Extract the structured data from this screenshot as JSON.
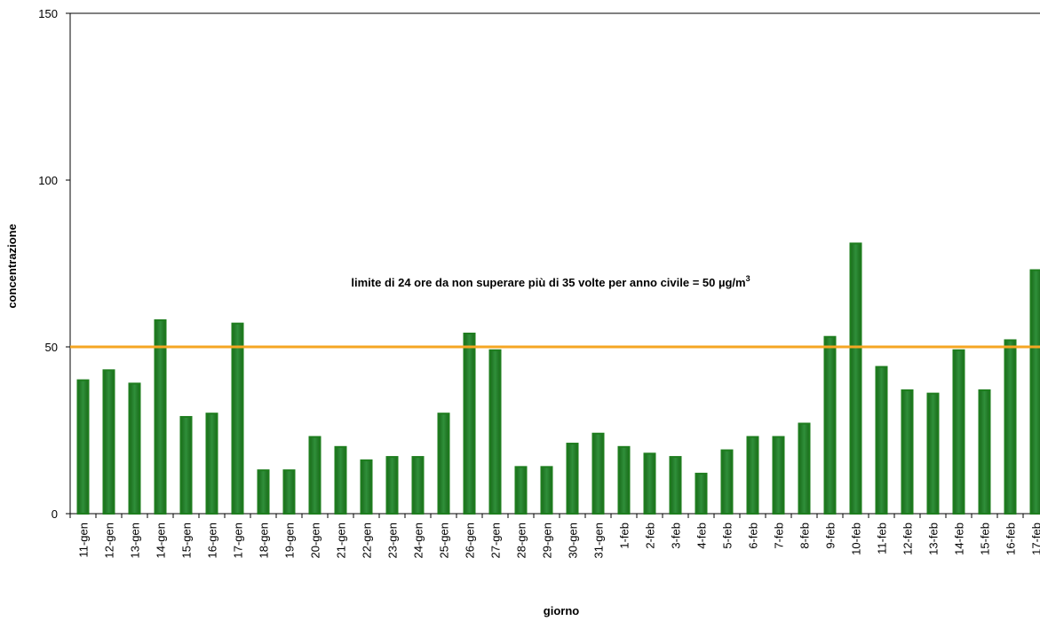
{
  "chart_data": {
    "type": "bar",
    "x_label": "giorno",
    "y_label": "concentrazione",
    "categories": [
      "11-gen",
      "12-gen",
      "13-gen",
      "14-gen",
      "15-gen",
      "16-gen",
      "17-gen",
      "18-gen",
      "19-gen",
      "20-gen",
      "21-gen",
      "22-gen",
      "23-gen",
      "24-gen",
      "25-gen",
      "26-gen",
      "27-gen",
      "28-gen",
      "29-gen",
      "30-gen",
      "31-gen",
      "1-feb",
      "2-feb",
      "3-feb",
      "4-feb",
      "5-feb",
      "6-feb",
      "7-feb",
      "8-feb",
      "9-feb",
      "10-feb",
      "11-feb",
      "12-feb",
      "13-feb",
      "14-feb",
      "15-feb",
      "16-feb",
      "17-feb"
    ],
    "values": [
      40,
      43,
      39,
      58,
      29,
      30,
      57,
      13,
      13,
      23,
      20,
      16,
      17,
      17,
      30,
      54,
      49,
      14,
      14,
      21,
      24,
      20,
      18,
      17,
      12,
      19,
      23,
      23,
      27,
      53,
      81,
      44,
      37,
      36,
      49,
      37,
      52,
      73
    ],
    "color": "#1e7d1e",
    "ylim": [
      0,
      150
    ],
    "yticks": [
      0,
      50,
      100,
      150
    ],
    "limit": {
      "value": 50,
      "label": "limite di 24 ore da non superare più di 35 volte per anno civile = 50 µg/m",
      "label_sup": "3",
      "color": "#f5a623"
    }
  }
}
